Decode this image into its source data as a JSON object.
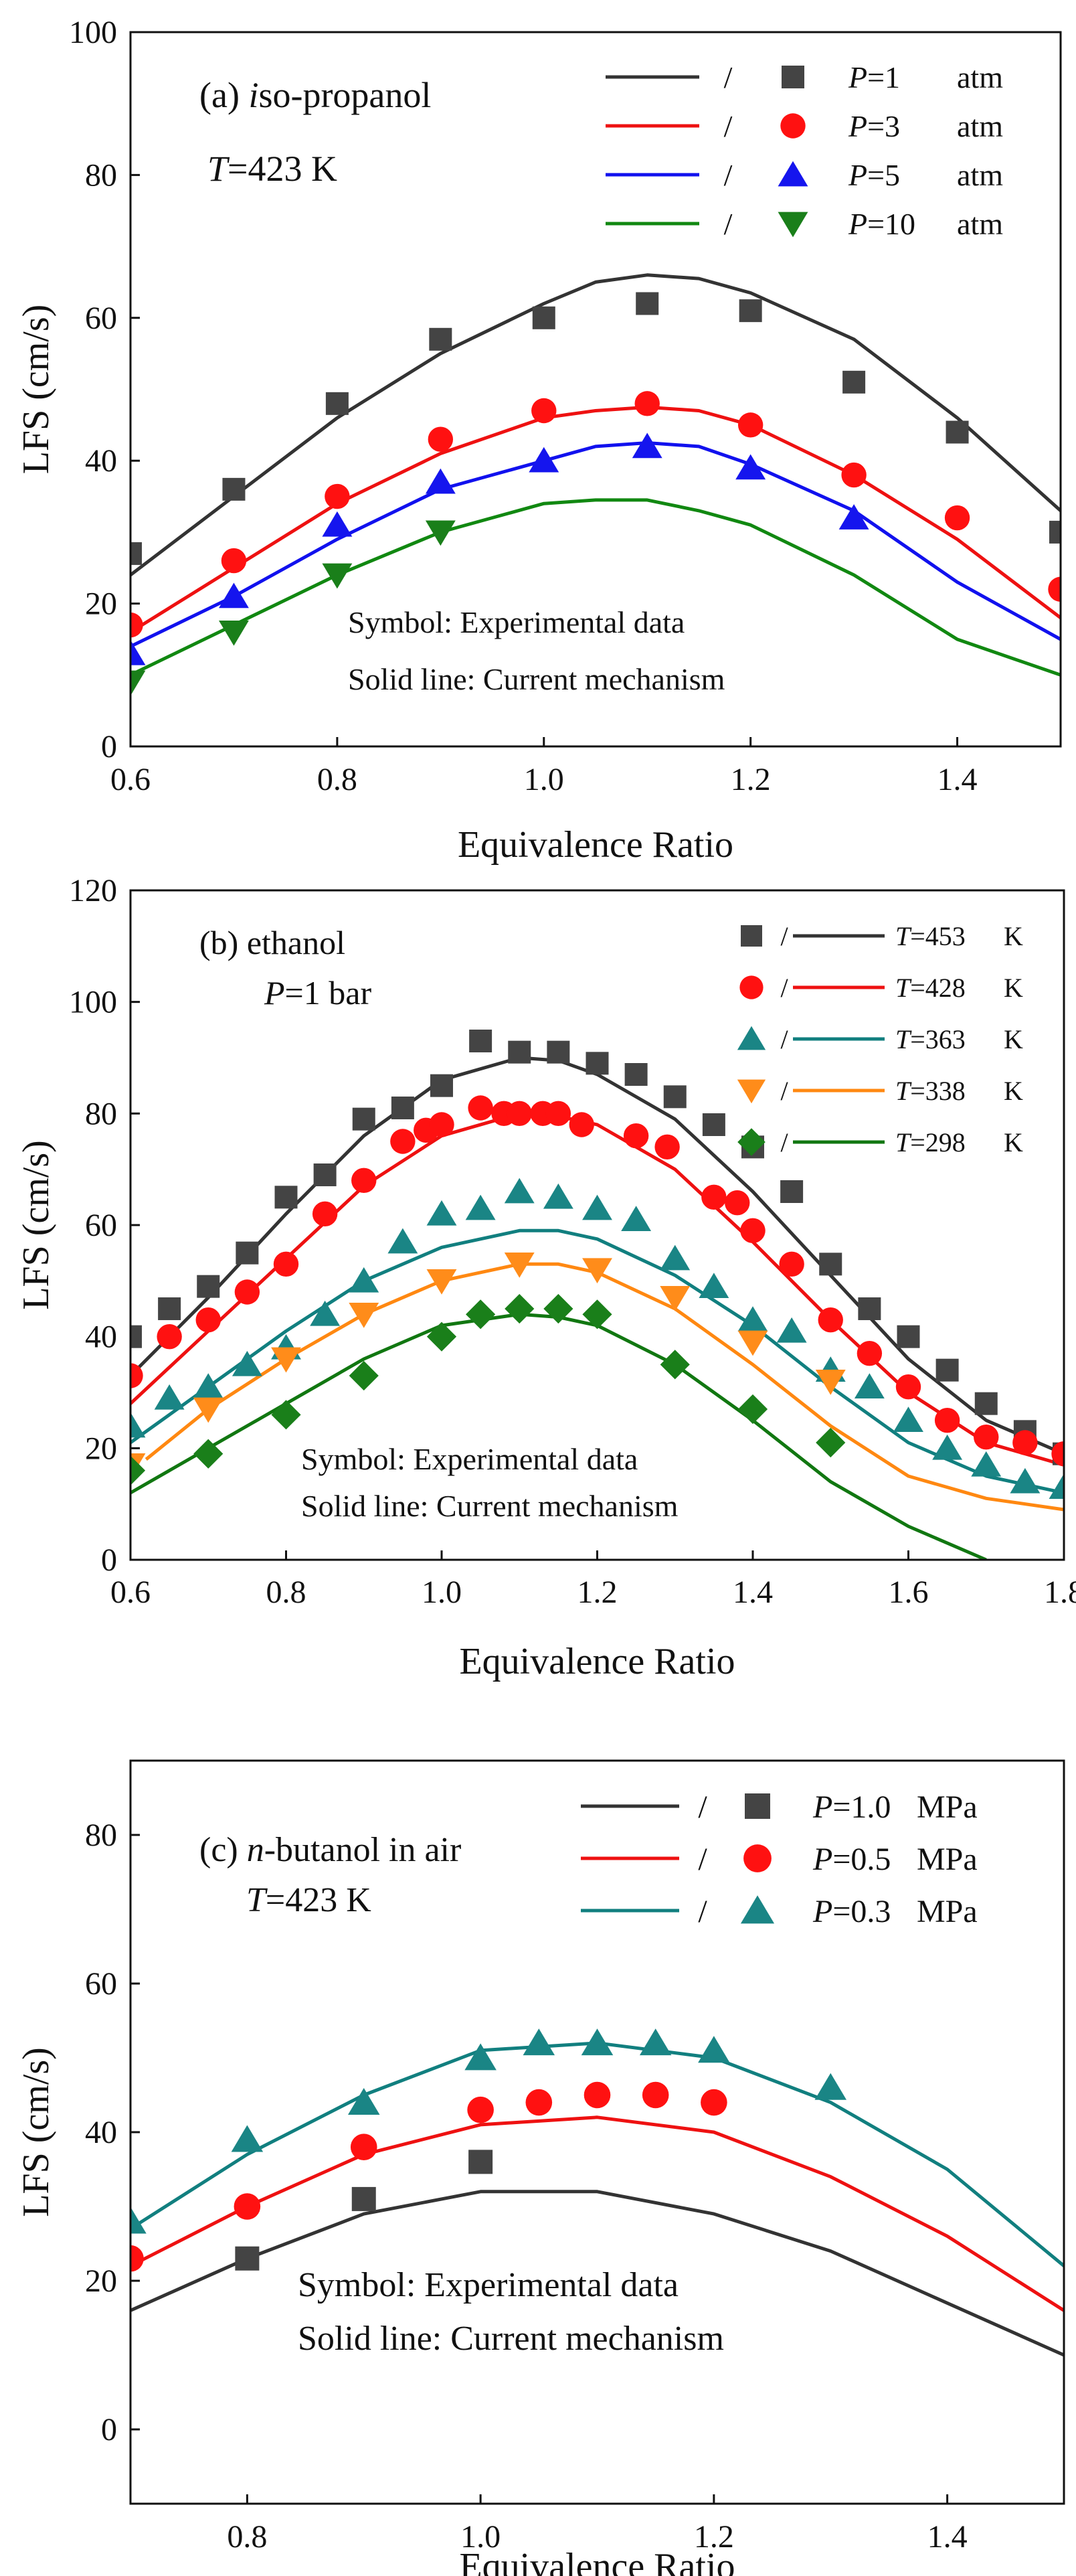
{
  "chart_data": [
    {
      "type": "line",
      "panel": "a",
      "title_prefix": "(a) ",
      "title_italic": "i",
      "title_rest": "so-propanol",
      "condition_var": "T",
      "condition_text": "=423  K",
      "xlabel": "Equivalence Ratio",
      "ylabel": "LFS (cm/s)",
      "xlim": [
        0.6,
        1.5
      ],
      "ylim": [
        0,
        100
      ],
      "xticks": [
        0.6,
        0.8,
        1.0,
        1.2,
        1.4
      ],
      "xtick_labels": [
        "0.6",
        "0.8",
        "1.0",
        "1.2",
        "1.4"
      ],
      "yticks": [
        0,
        20,
        40,
        60,
        80,
        100
      ],
      "ytick_labels": [
        "0",
        "20",
        "40",
        "60",
        "80",
        "100"
      ],
      "legend_position": "top-right",
      "legend_sep": "/",
      "note_symbol": "Symbol: Experimental data",
      "note_line": "Solid line: Current mechanism",
      "series": [
        {
          "legend_var": "P",
          "legend_value": "=1",
          "legend_unit": "atm",
          "color": "#333333",
          "marker": "square",
          "marker_color": "#444444",
          "line_x": [
            0.6,
            0.7,
            0.8,
            0.9,
            1.0,
            1.05,
            1.1,
            1.15,
            1.2,
            1.3,
            1.4,
            1.5
          ],
          "line_y": [
            24,
            35,
            46,
            55,
            62,
            65,
            66,
            65.5,
            63.5,
            57,
            46,
            33
          ],
          "points_x": [
            0.6,
            0.7,
            0.8,
            0.9,
            1.0,
            1.1,
            1.2,
            1.3,
            1.4,
            1.5
          ],
          "points_y": [
            27,
            36,
            48,
            57,
            60,
            62,
            61,
            51,
            44,
            30
          ]
        },
        {
          "legend_var": "P",
          "legend_value": "=3",
          "legend_unit": "atm",
          "color": "#ee1111",
          "marker": "circle",
          "marker_color": "#ff1111",
          "line_x": [
            0.6,
            0.7,
            0.8,
            0.9,
            1.0,
            1.05,
            1.1,
            1.15,
            1.2,
            1.3,
            1.4,
            1.5
          ],
          "line_y": [
            16,
            25,
            34,
            41,
            46,
            47,
            47.5,
            47,
            45,
            38,
            29,
            18
          ],
          "points_x": [
            0.6,
            0.7,
            0.8,
            0.9,
            1.0,
            1.1,
            1.2,
            1.3,
            1.4,
            1.5
          ],
          "points_y": [
            17,
            26,
            35,
            43,
            47,
            48,
            45,
            38,
            32,
            22
          ]
        },
        {
          "legend_var": "P",
          "legend_value": "=5",
          "legend_unit": "atm",
          "color": "#1111ee",
          "marker": "triangle-up",
          "marker_color": "#1515ee",
          "line_x": [
            0.6,
            0.7,
            0.8,
            0.9,
            1.0,
            1.05,
            1.1,
            1.15,
            1.2,
            1.3,
            1.4,
            1.5
          ],
          "line_y": [
            14,
            21,
            29,
            36,
            40,
            42,
            42.5,
            42,
            39.5,
            33,
            23,
            15
          ],
          "points_x": [
            0.6,
            0.7,
            0.8,
            0.9,
            1.0,
            1.1,
            1.2,
            1.3
          ],
          "points_y": [
            13,
            21,
            31,
            37,
            40,
            42,
            39,
            32
          ]
        },
        {
          "legend_var": "P",
          "legend_value": "=10",
          "legend_unit": "atm",
          "color": "#118811",
          "marker": "triangle-down",
          "marker_color": "#1a7f1a",
          "line_x": [
            0.6,
            0.7,
            0.8,
            0.9,
            1.0,
            1.05,
            1.1,
            1.15,
            1.2,
            1.3,
            1.4,
            1.5
          ],
          "line_y": [
            10,
            17,
            24,
            30,
            34,
            34.5,
            34.5,
            33,
            31,
            24,
            15,
            10
          ],
          "points_x": [
            0.6,
            0.7,
            0.8,
            0.9
          ],
          "points_y": [
            9,
            16,
            24,
            30
          ]
        }
      ]
    },
    {
      "type": "line",
      "panel": "b",
      "title_prefix": "(b) ",
      "title_italic": "",
      "title_rest": "ethanol",
      "condition_var": "P",
      "condition_text": "=1 bar",
      "xlabel": "Equivalence Ratio",
      "ylabel": "LFS (cm/s)",
      "xlim": [
        0.6,
        1.8
      ],
      "ylim": [
        0,
        120
      ],
      "xticks": [
        0.6,
        0.8,
        1.0,
        1.2,
        1.4,
        1.6,
        1.8
      ],
      "xtick_labels": [
        "0.6",
        "0.8",
        "1.0",
        "1.2",
        "1.4",
        "1.6",
        "1.8"
      ],
      "yticks": [
        0,
        20,
        40,
        60,
        80,
        100,
        120
      ],
      "ytick_labels": [
        "0",
        "20",
        "40",
        "60",
        "80",
        "100",
        "120"
      ],
      "legend_position": "top-right",
      "legend_sep": "/",
      "note_symbol": "Symbol: Experimental data",
      "note_line": "Solid line: Current mechanism",
      "series": [
        {
          "legend_var": "T",
          "legend_value": "=453",
          "legend_unit": "K",
          "color": "#333333",
          "marker": "square",
          "marker_color": "#444444",
          "line_x": [
            0.6,
            0.7,
            0.8,
            0.9,
            1.0,
            1.1,
            1.15,
            1.2,
            1.3,
            1.4,
            1.5,
            1.6,
            1.7,
            1.8
          ],
          "line_y": [
            33,
            47,
            62,
            76,
            86,
            90,
            89.5,
            87,
            79,
            66,
            51,
            36,
            25,
            19
          ],
          "points_x": [
            0.6,
            0.65,
            0.7,
            0.75,
            0.8,
            0.85,
            0.9,
            0.95,
            1.0,
            1.05,
            1.1,
            1.15,
            1.2,
            1.25,
            1.3,
            1.35,
            1.4,
            1.45,
            1.5,
            1.55,
            1.6,
            1.65,
            1.7,
            1.75,
            1.8
          ],
          "points_y": [
            40,
            45,
            49,
            55,
            65,
            69,
            79,
            81,
            85,
            93,
            91,
            91,
            89,
            87,
            83,
            78,
            74,
            66,
            53,
            45,
            40,
            34,
            28,
            23,
            19
          ]
        },
        {
          "legend_var": "T",
          "legend_value": "=428",
          "legend_unit": "K",
          "color": "#ee1111",
          "marker": "circle",
          "marker_color": "#ff1111",
          "line_x": [
            0.6,
            0.7,
            0.8,
            0.9,
            1.0,
            1.1,
            1.15,
            1.2,
            1.3,
            1.4,
            1.5,
            1.6,
            1.7,
            1.8
          ],
          "line_y": [
            28,
            41,
            54,
            67,
            76,
            80,
            79.5,
            78,
            70,
            57,
            43,
            30,
            21,
            17
          ],
          "points_x": [
            0.6,
            0.65,
            0.7,
            0.75,
            0.8,
            0.85,
            0.9,
            0.95,
            0.98,
            1.0,
            1.05,
            1.08,
            1.1,
            1.13,
            1.15,
            1.18,
            1.25,
            1.29,
            1.35,
            1.38,
            1.4,
            1.45,
            1.5,
            1.55,
            1.6,
            1.65,
            1.7,
            1.75,
            1.8
          ],
          "points_y": [
            33,
            40,
            43,
            48,
            53,
            62,
            68,
            75,
            77,
            78,
            81,
            80,
            80,
            80,
            80,
            78,
            76,
            74,
            65,
            64,
            59,
            53,
            43,
            37,
            31,
            25,
            22,
            21,
            19
          ]
        },
        {
          "legend_var": "T",
          "legend_value": "=363",
          "legend_unit": "K",
          "color": "#117f7f",
          "marker": "triangle-up",
          "marker_color": "#1a8585",
          "line_x": [
            0.6,
            0.7,
            0.8,
            0.9,
            1.0,
            1.1,
            1.15,
            1.2,
            1.3,
            1.4,
            1.5,
            1.6,
            1.7,
            1.8
          ],
          "line_y": [
            21,
            31,
            41,
            50,
            56,
            59,
            59,
            57.5,
            51,
            42,
            31,
            21,
            15,
            12
          ],
          "points_x": [
            0.6,
            0.65,
            0.7,
            0.75,
            0.8,
            0.85,
            0.9,
            0.95,
            1.0,
            1.05,
            1.1,
            1.15,
            1.2,
            1.25,
            1.3,
            1.35,
            1.4,
            1.45,
            1.5,
            1.55,
            1.6,
            1.65,
            1.7,
            1.75,
            1.8
          ],
          "points_y": [
            24,
            29,
            31,
            35,
            38,
            44,
            50,
            57,
            62,
            63,
            66,
            65,
            63,
            61,
            54,
            49,
            43,
            41,
            34,
            31,
            25,
            20,
            17,
            14,
            13
          ]
        },
        {
          "legend_var": "T",
          "legend_value": "=338",
          "legend_unit": "K",
          "color": "#ff8811",
          "marker": "triangle-down",
          "marker_color": "#ff8c1a",
          "line_x": [
            0.62,
            0.7,
            0.8,
            0.9,
            1.0,
            1.1,
            1.15,
            1.2,
            1.3,
            1.4,
            1.5,
            1.6,
            1.7,
            1.8
          ],
          "line_y": [
            18,
            27,
            36,
            44,
            50,
            53,
            53,
            51.5,
            45,
            35,
            24,
            15,
            11,
            9
          ],
          "points_x": [
            0.6,
            0.7,
            0.8,
            0.9,
            1.0,
            1.1,
            1.2,
            1.3,
            1.4,
            1.5
          ],
          "points_y": [
            17,
            27,
            36,
            44,
            50,
            53,
            52,
            47,
            39,
            32
          ]
        },
        {
          "legend_var": "T",
          "legend_value": "=298",
          "legend_unit": "K",
          "color": "#117711",
          "marker": "diamond",
          "marker_color": "#1a7f1a",
          "line_x": [
            0.6,
            0.7,
            0.8,
            0.9,
            1.0,
            1.1,
            1.15,
            1.2,
            1.3,
            1.4,
            1.5,
            1.6,
            1.7
          ],
          "line_y": [
            12,
            20,
            28,
            36,
            42,
            44,
            43.5,
            42,
            35,
            25,
            14,
            6,
            0
          ],
          "points_x": [
            0.6,
            0.7,
            0.8,
            0.9,
            1.0,
            1.05,
            1.1,
            1.15,
            1.2,
            1.3,
            1.4,
            1.5
          ],
          "points_y": [
            16,
            19,
            26,
            33,
            40,
            44,
            45,
            45,
            44,
            35,
            27,
            21
          ]
        }
      ]
    },
    {
      "type": "line",
      "panel": "c",
      "title_prefix": "(c) ",
      "title_italic": "n",
      "title_rest": "-butanol in air",
      "condition_var": "T",
      "condition_text": "=423 K",
      "xlabel": "Equivalence Ratio",
      "ylabel": "LFS (cm/s)",
      "xlim": [
        0.7,
        1.5
      ],
      "ylim": [
        -10,
        90
      ],
      "xticks": [
        0.8,
        1.0,
        1.2,
        1.4
      ],
      "xtick_labels": [
        "0.8",
        "1.0",
        "1.2",
        "1.4"
      ],
      "yticks": [
        0,
        20,
        40,
        60,
        80
      ],
      "ytick_labels": [
        "0",
        "20",
        "40",
        "60",
        "80"
      ],
      "legend_position": "top-right",
      "legend_sep": "/",
      "note_symbol": "Symbol: Experimental data",
      "note_line": "Solid line: Current mechanism",
      "series": [
        {
          "legend_var": "P",
          "legend_value": "=1.0",
          "legend_unit": "MPa",
          "color": "#333333",
          "marker": "square",
          "marker_color": "#444444",
          "line_x": [
            0.7,
            0.8,
            0.9,
            1.0,
            1.1,
            1.2,
            1.3,
            1.4,
            1.5
          ],
          "line_y": [
            16,
            23,
            29,
            32,
            32,
            29,
            24,
            17,
            10
          ],
          "points_x": [
            0.8,
            0.9,
            1.0
          ],
          "points_y": [
            23,
            31,
            36
          ]
        },
        {
          "legend_var": "P",
          "legend_value": "=0.5",
          "legend_unit": "MPa",
          "color": "#ee1111",
          "marker": "circle",
          "marker_color": "#ff1111",
          "line_x": [
            0.7,
            0.8,
            0.9,
            1.0,
            1.1,
            1.2,
            1.3,
            1.4,
            1.5
          ],
          "line_y": [
            22,
            30,
            37,
            41,
            42,
            40,
            34,
            26,
            16
          ],
          "points_x": [
            0.7,
            0.8,
            0.9,
            1.0,
            1.05,
            1.1,
            1.15,
            1.2
          ],
          "points_y": [
            23,
            30,
            38,
            43,
            44,
            45,
            45,
            44
          ]
        },
        {
          "legend_var": "P",
          "legend_value": "=0.3",
          "legend_unit": "MPa",
          "color": "#117f7f",
          "marker": "triangle-up",
          "marker_color": "#1a8585",
          "line_x": [
            0.7,
            0.8,
            0.9,
            1.0,
            1.1,
            1.2,
            1.3,
            1.4,
            1.5
          ],
          "line_y": [
            27,
            37,
            45,
            51,
            52,
            50,
            44,
            35,
            22
          ],
          "points_x": [
            0.7,
            0.8,
            0.9,
            1.0,
            1.05,
            1.1,
            1.15,
            1.2,
            1.3
          ],
          "points_y": [
            28,
            39,
            44,
            50,
            52,
            52,
            52,
            51,
            46
          ]
        }
      ]
    }
  ]
}
